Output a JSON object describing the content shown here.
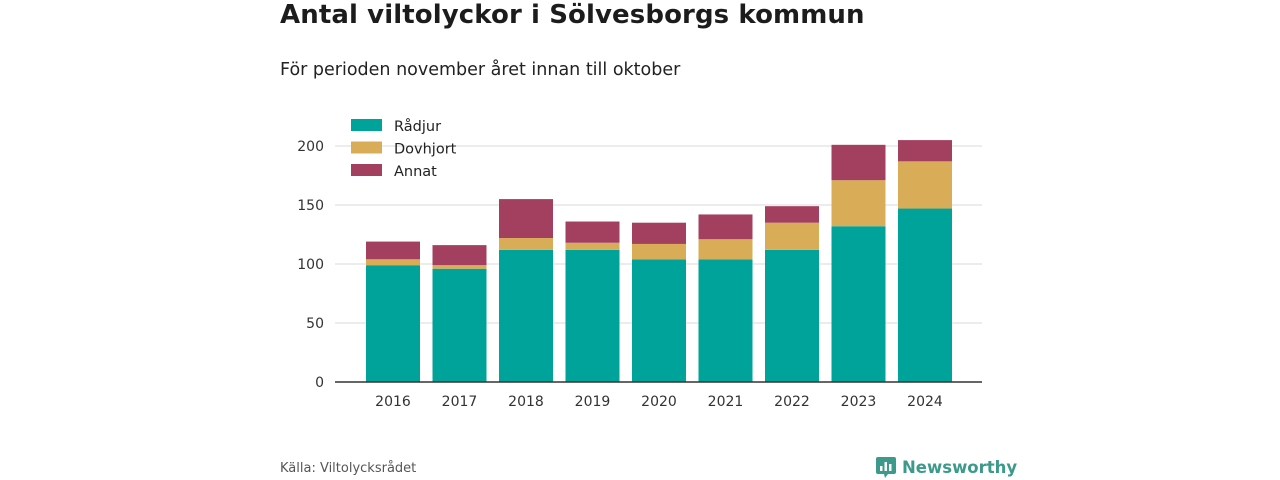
{
  "title": "Antal viltolyckor i Sölvesborgs kommun",
  "subtitle": "För perioden november året innan till oktober",
  "source": "Källa: Viltolycksrådet",
  "brand": {
    "name": "Newsworthy",
    "icon": "bar-chart-logo-icon",
    "color": "#3b9a8a"
  },
  "chart_data": {
    "type": "bar",
    "stacked": true,
    "categories": [
      "2016",
      "2017",
      "2018",
      "2019",
      "2020",
      "2021",
      "2022",
      "2023",
      "2024"
    ],
    "series": [
      {
        "name": "Rådjur",
        "color": "#00a39a",
        "values": [
          99,
          96,
          112,
          112,
          104,
          104,
          112,
          132,
          147
        ]
      },
      {
        "name": "Dovhjort",
        "color": "#d9ad57",
        "values": [
          5,
          3,
          10,
          6,
          13,
          17,
          23,
          39,
          40
        ]
      },
      {
        "name": "Annat",
        "color": "#a3405f",
        "values": [
          15,
          17,
          33,
          18,
          18,
          21,
          14,
          30,
          18
        ]
      }
    ],
    "ylim": [
      0,
      200
    ],
    "yticks": [
      0,
      50,
      100,
      150,
      200
    ],
    "grid": true,
    "legend": "top-left",
    "xlabel": "",
    "ylabel": ""
  }
}
